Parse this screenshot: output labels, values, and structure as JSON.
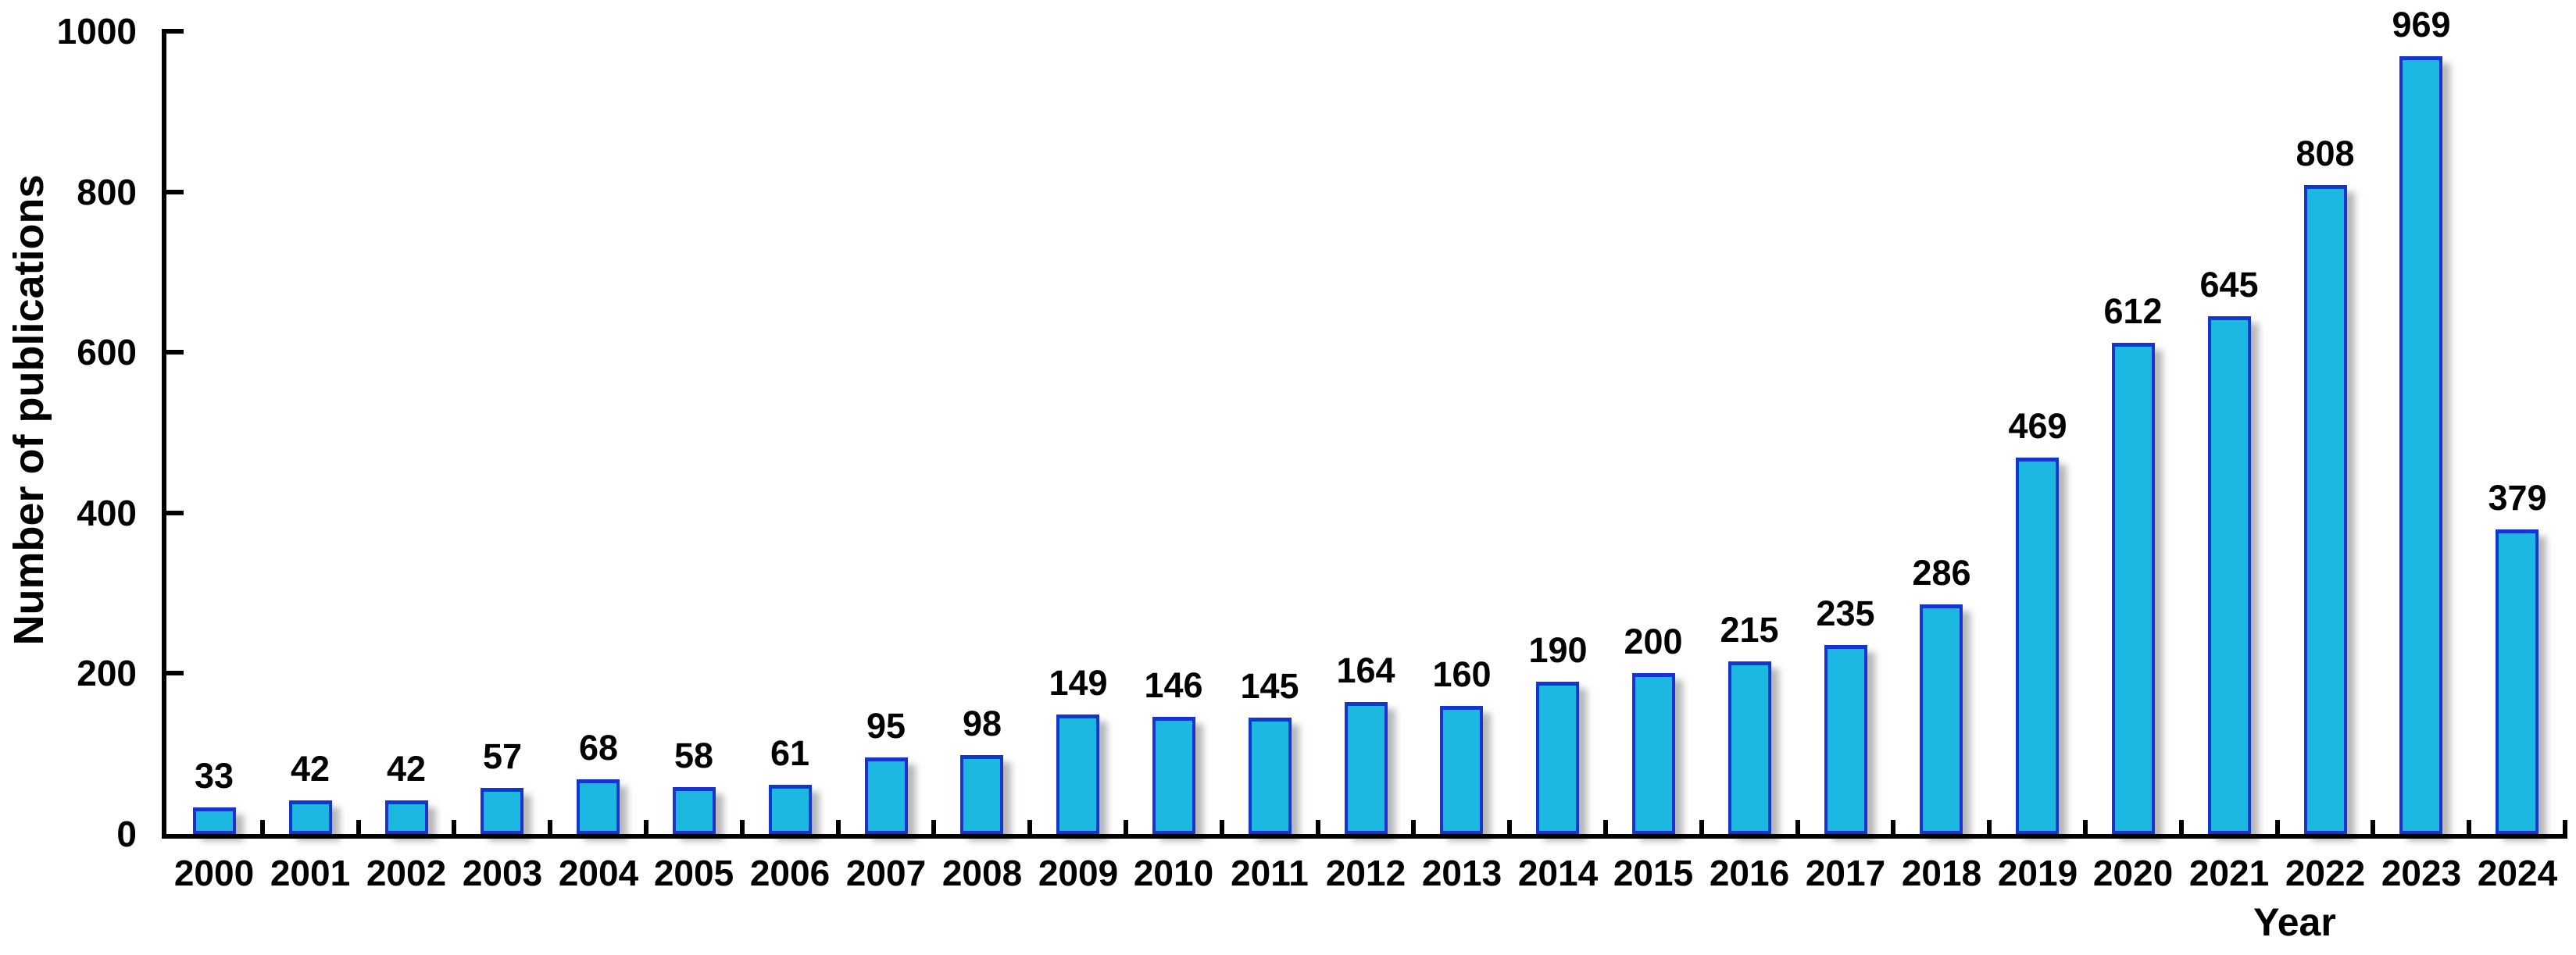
{
  "chart_data": {
    "type": "bar",
    "title": "",
    "xlabel": "Year",
    "ylabel": "Number of publications",
    "categories": [
      "2000",
      "2001",
      "2002",
      "2003",
      "2004",
      "2005",
      "2006",
      "2007",
      "2008",
      "2009",
      "2010",
      "2011",
      "2012",
      "2013",
      "2014",
      "2015",
      "2016",
      "2017",
      "2018",
      "2019",
      "2020",
      "2021",
      "2022",
      "2023",
      "2024"
    ],
    "values": [
      33,
      42,
      42,
      57,
      68,
      58,
      61,
      95,
      98,
      149,
      146,
      145,
      164,
      160,
      190,
      200,
      215,
      235,
      286,
      469,
      612,
      645,
      808,
      969,
      379
    ],
    "bar_value_labels": [
      "33",
      "42",
      "42",
      "57",
      "68",
      "58",
      "61",
      "95",
      "98",
      "149",
      "146",
      "145",
      "164",
      "160",
      "190",
      "200",
      "215",
      "235",
      "286",
      "469",
      "612",
      "645",
      "808",
      "969",
      "379"
    ],
    "ylim": [
      0,
      1000
    ],
    "yticks": [
      0,
      200,
      400,
      600,
      800,
      1000
    ],
    "ytick_labels": [
      "0",
      "200",
      "400",
      "600",
      "800",
      "1000"
    ],
    "grid": false,
    "legend": null,
    "colors": {
      "bar_fill": "#1cb8e2",
      "bar_border": "#1535cf",
      "axis": "#000000",
      "text": "#000000"
    }
  }
}
